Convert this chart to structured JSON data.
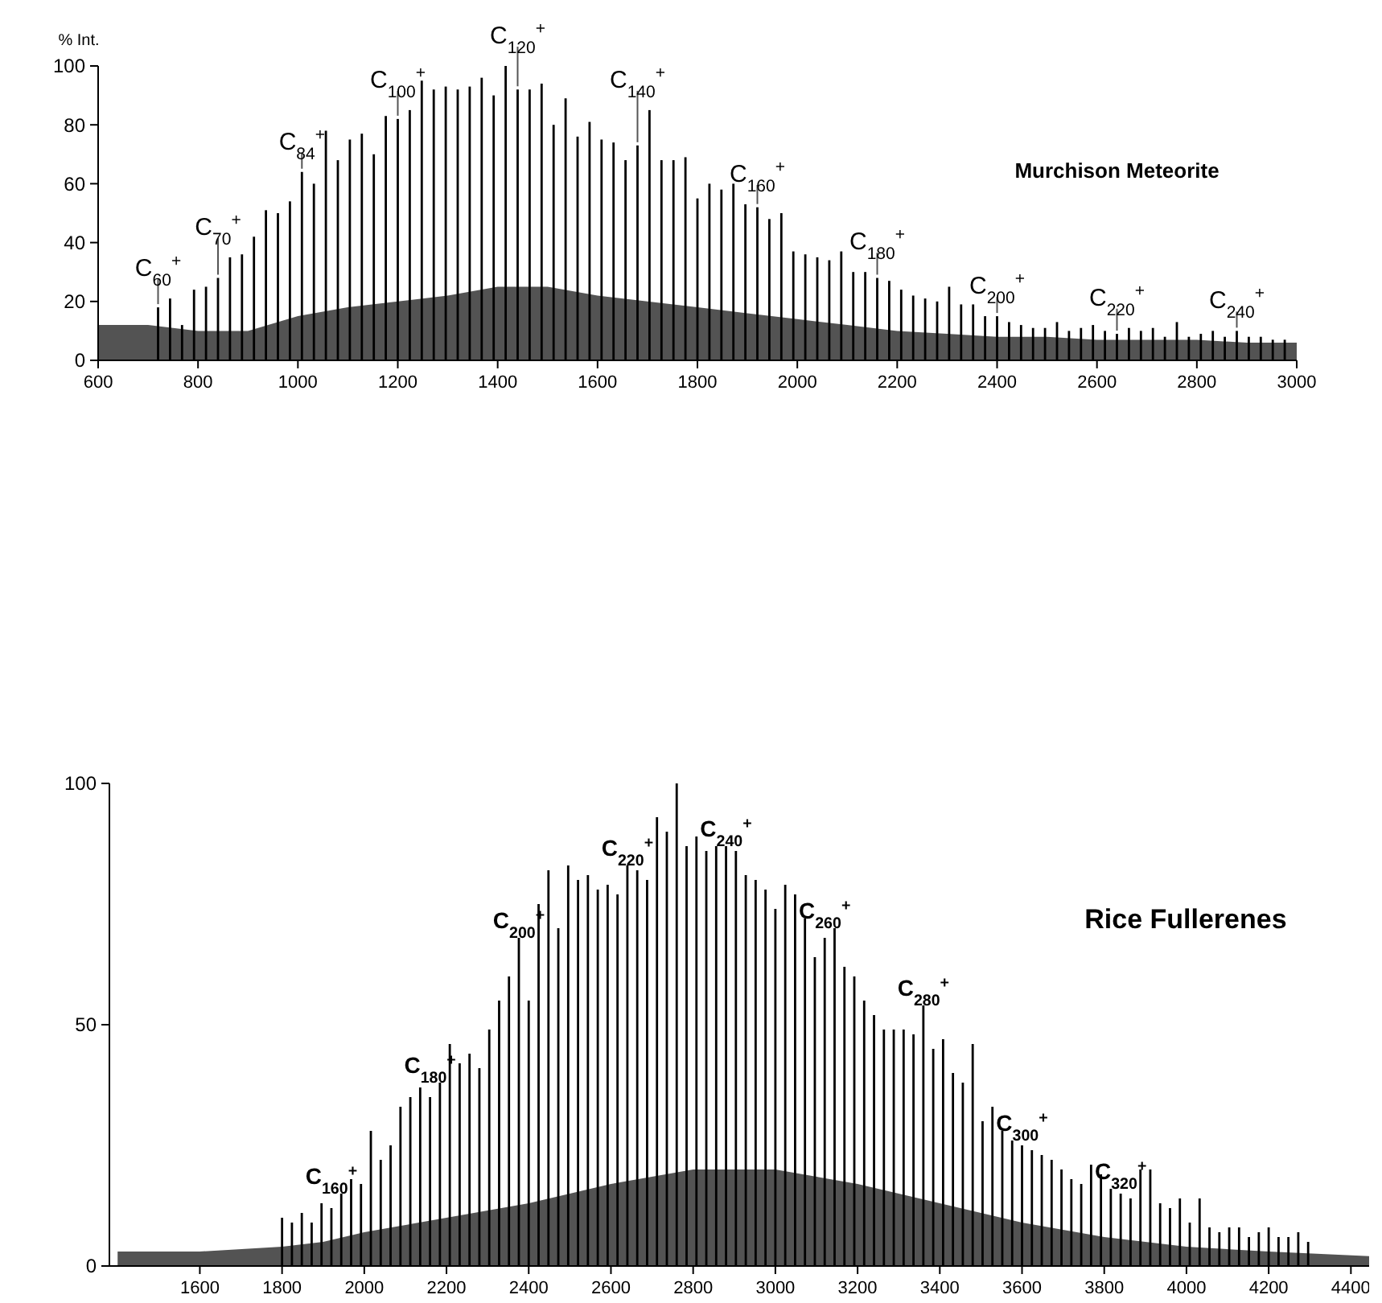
{
  "chart_data": [
    {
      "type": "bar",
      "title": "Murchison Meteorite",
      "ylabel": "% Int.",
      "xlim": [
        600,
        3000
      ],
      "xticks": [
        600,
        800,
        1000,
        1200,
        1400,
        1600,
        1800,
        2000,
        2200,
        2400,
        2600,
        2800,
        3000
      ],
      "ylim": [
        0,
        100
      ],
      "yticks": [
        0,
        20,
        40,
        60,
        80,
        100
      ],
      "grid": false,
      "series": [
        {
          "type": "area",
          "color": "#1a1a1a",
          "x": [
            600,
            700,
            800,
            900,
            1000,
            1100,
            1200,
            1300,
            1400,
            1500,
            1600,
            1700,
            1800,
            1900,
            2000,
            2100,
            2200,
            2300,
            2400,
            2500,
            2600,
            2700,
            2800,
            2900,
            3000
          ],
          "values": [
            12,
            12,
            10,
            10,
            15,
            18,
            20,
            22,
            25,
            25,
            22,
            20,
            18,
            16,
            14,
            12,
            10,
            9,
            8,
            8,
            7,
            7,
            7,
            6,
            6
          ]
        },
        {
          "color": "#000000",
          "x": [
            720,
            744,
            768,
            792,
            816,
            840,
            864,
            888,
            912,
            936,
            960,
            984,
            1008,
            1032,
            1056,
            1080,
            1104,
            1128,
            1152,
            1176,
            1200,
            1224,
            1248,
            1272,
            1296,
            1320,
            1344,
            1368,
            1392,
            1416,
            1440,
            1464,
            1488,
            1512,
            1536,
            1560,
            1584,
            1608,
            1632,
            1656,
            1680,
            1704,
            1728,
            1752,
            1776,
            1800,
            1824,
            1848,
            1872,
            1896,
            1920,
            1944,
            1968,
            1992,
            2016,
            2040,
            2064,
            2088,
            2112,
            2136,
            2160,
            2184,
            2208,
            2232,
            2256,
            2280,
            2304,
            2328,
            2352,
            2376,
            2400,
            2424,
            2448,
            2472,
            2496,
            2520,
            2544,
            2568,
            2592,
            2616,
            2640,
            2664,
            2688,
            2712,
            2736,
            2760,
            2784,
            2808,
            2832,
            2856,
            2880,
            2904,
            2928,
            2952,
            2976
          ],
          "values": [
            18,
            21,
            12,
            24,
            25,
            28,
            35,
            36,
            42,
            51,
            50,
            54,
            64,
            60,
            78,
            68,
            75,
            77,
            70,
            83,
            82,
            85,
            95,
            92,
            93,
            92,
            93,
            96,
            90,
            100,
            92,
            92,
            94,
            80,
            89,
            76,
            81,
            75,
            74,
            68,
            73,
            85,
            68,
            68,
            69,
            55,
            60,
            58,
            60,
            53,
            52,
            48,
            50,
            37,
            36,
            35,
            34,
            37,
            30,
            30,
            28,
            27,
            24,
            22,
            21,
            20,
            25,
            19,
            19,
            15,
            15,
            13,
            12,
            11,
            11,
            13,
            10,
            11,
            12,
            10,
            9,
            11,
            10,
            11,
            8,
            13,
            8,
            9,
            10,
            8,
            10,
            8,
            8,
            7,
            7
          ]
        }
      ],
      "annotations": [
        {
          "text": "C$_{60}$$^{+}$",
          "x": 720,
          "y": 18
        },
        {
          "text": "C$_{70}$$^{+}$",
          "x": 840,
          "y": 28
        },
        {
          "text": "C$_{84}$$^{+}$",
          "x": 1008,
          "y": 64
        },
        {
          "text": "C$_{100}$$^{+}$",
          "x": 1200,
          "y": 82
        },
        {
          "text": "C$_{120}$$^{+}$",
          "x": 1440,
          "y": 92
        },
        {
          "text": "C$_{140}$$^{+}$",
          "x": 1680,
          "y": 73
        },
        {
          "text": "C$_{160}$$^{+}$",
          "x": 1920,
          "y": 52
        },
        {
          "text": "C$_{180}$$^{+}$",
          "x": 2160,
          "y": 28
        },
        {
          "text": "C$_{200}$$^{+}$",
          "x": 2400,
          "y": 15
        },
        {
          "text": "C$_{220}$$^{+}$",
          "x": 2640,
          "y": 9
        },
        {
          "text": "C$_{240}$$^{+}$",
          "x": 2880,
          "y": 10
        }
      ]
    },
    {
      "type": "bar",
      "title": "Rice Fullerenes",
      "xlim": [
        1380,
        4460
      ],
      "xticks": [
        1600,
        1800,
        2000,
        2200,
        2400,
        2600,
        2800,
        3000,
        3200,
        3400,
        3600,
        3800,
        4000,
        4200,
        4400
      ],
      "ylim": [
        0,
        100
      ],
      "yticks": [
        0,
        50,
        100
      ],
      "grid": false,
      "series": [
        {
          "type": "area",
          "color": "#1a1a1a",
          "x": [
            1400,
            1600,
            1800,
            1900,
            2000,
            2200,
            2400,
            2600,
            2800,
            3000,
            3200,
            3400,
            3600,
            3800,
            4000,
            4200,
            4460
          ],
          "values": [
            3,
            3,
            4,
            5,
            7,
            10,
            13,
            17,
            20,
            20,
            17,
            13,
            9,
            6,
            4,
            3,
            2
          ]
        },
        {
          "color": "#000000",
          "x": [
            1800,
            1824,
            1848,
            1872,
            1896,
            1920,
            1944,
            1968,
            1992,
            2016,
            2040,
            2064,
            2088,
            2112,
            2136,
            2160,
            2184,
            2208,
            2232,
            2256,
            2280,
            2304,
            2328,
            2352,
            2376,
            2400,
            2424,
            2448,
            2472,
            2496,
            2520,
            2544,
            2568,
            2592,
            2616,
            2640,
            2664,
            2688,
            2712,
            2736,
            2760,
            2784,
            2808,
            2832,
            2856,
            2880,
            2904,
            2928,
            2952,
            2976,
            3000,
            3024,
            3048,
            3072,
            3096,
            3120,
            3144,
            3168,
            3192,
            3216,
            3240,
            3264,
            3288,
            3312,
            3336,
            3360,
            3384,
            3408,
            3432,
            3456,
            3480,
            3504,
            3528,
            3552,
            3576,
            3600,
            3624,
            3648,
            3672,
            3696,
            3720,
            3744,
            3768,
            3792,
            3816,
            3840,
            3864,
            3888,
            3912,
            3936,
            3960,
            3984,
            4008,
            4032,
            4056,
            4080,
            4104,
            4128,
            4152,
            4176,
            4200,
            4224,
            4248,
            4272,
            4296
          ],
          "values": [
            10,
            9,
            11,
            9,
            13,
            12,
            15,
            18,
            17,
            28,
            22,
            25,
            33,
            35,
            37,
            35,
            38,
            46,
            42,
            44,
            41,
            49,
            55,
            60,
            68,
            55,
            75,
            82,
            70,
            83,
            80,
            81,
            78,
            79,
            77,
            83,
            82,
            80,
            93,
            90,
            100,
            87,
            89,
            86,
            87,
            87,
            86,
            81,
            80,
            78,
            74,
            79,
            77,
            72,
            64,
            68,
            70,
            62,
            60,
            55,
            52,
            49,
            49,
            49,
            48,
            54,
            45,
            47,
            40,
            38,
            46,
            30,
            33,
            28,
            26,
            25,
            24,
            23,
            22,
            20,
            18,
            17,
            21,
            19,
            16,
            15,
            14,
            20,
            20,
            13,
            12,
            14,
            9,
            14,
            8,
            7,
            8,
            8,
            6,
            7,
            8,
            6,
            6,
            7,
            5
          ]
        }
      ],
      "annotations": [
        {
          "text": "C$_{160}$$^{+}$",
          "x": 1920,
          "y": 12
        },
        {
          "text": "C$_{180}$$^{+}$",
          "x": 2160,
          "y": 35
        },
        {
          "text": "C$_{200}$$^{+}$",
          "x": 2376,
          "y": 68
        },
        {
          "text": "C$_{220}$$^{+}$",
          "x": 2640,
          "y": 83
        },
        {
          "text": "C$_{240}$$^{+}$",
          "x": 2880,
          "y": 86
        },
        {
          "text": "C$_{260}$$^{+}$",
          "x": 3120,
          "y": 68
        },
        {
          "text": "C$_{280}$$^{+}$",
          "x": 3360,
          "y": 54
        },
        {
          "text": "C$_{300}$$^{+}$",
          "x": 3600,
          "y": 25
        },
        {
          "text": "C$_{320}$$^{+}$",
          "x": 3840,
          "y": 15
        }
      ]
    }
  ]
}
